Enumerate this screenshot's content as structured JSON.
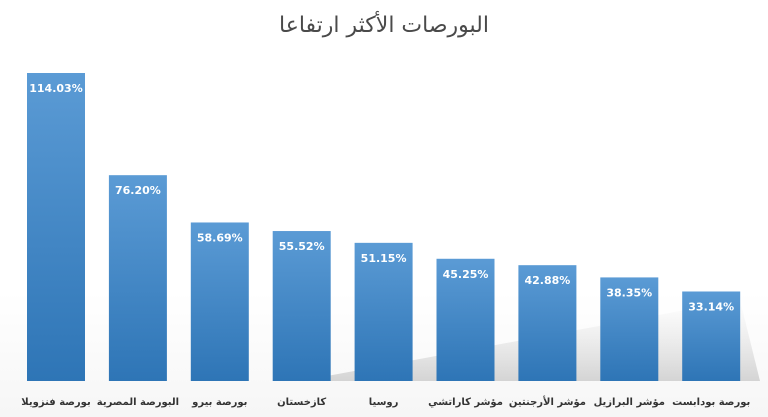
{
  "chart_data": {
    "type": "bar",
    "title": "البورصات الأكثر ارتفاعا",
    "categories": [
      "بورصة فنزويلا",
      "البورصة المصرية",
      "بورصة بيرو",
      "كازخستان",
      "روسيا",
      "مؤشر كاراتشي",
      "مؤشر الأرجنتين",
      "مؤشر البرازيل",
      "بورصة بودابست"
    ],
    "values": [
      114.03,
      76.2,
      58.69,
      55.52,
      51.15,
      45.25,
      42.88,
      38.35,
      33.14
    ],
    "data_labels": [
      "114.03%",
      "76.20%",
      "58.69%",
      "55.52%",
      "51.15%",
      "45.25%",
      "42.88%",
      "38.35%",
      "33.14%"
    ],
    "ylim": [
      0,
      114.03
    ],
    "grid": false,
    "legend": "none",
    "colors": {
      "bar_top": "#5b9bd5",
      "bar_bottom": "#2e75b6",
      "title": "#4a4a4a",
      "category_text": "#333333",
      "value_text": "#ffffff"
    }
  }
}
